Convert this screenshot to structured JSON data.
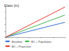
{
  "chart_data": {
    "type": "line",
    "title": "Class (m)",
    "x": [
      0,
      10
    ],
    "series": [
      {
        "name": "Baseline",
        "color": "#2e6fd4",
        "values": [
          0,
          47
        ]
      },
      {
        "name": "BC + Population",
        "color": "#3cb34a",
        "values": [
          0,
          70
        ]
      },
      {
        "name": "BC + Projection",
        "color": "#e8332a",
        "values": [
          0,
          95
        ]
      }
    ],
    "xlim": [
      0,
      10
    ],
    "xticks": [
      0,
      2,
      4,
      6,
      8,
      10
    ],
    "ylim": [
      0,
      100
    ],
    "yticks": [
      0,
      20,
      40,
      60,
      80,
      100
    ],
    "grid": false,
    "legend": "bottom",
    "tick_labels": false
  }
}
